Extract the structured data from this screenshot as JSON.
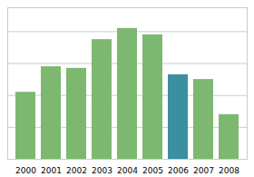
{
  "chart_data": {
    "type": "bar",
    "categories": [
      "2000",
      "2001",
      "2002",
      "2003",
      "2004",
      "2005",
      "2006",
      "2007",
      "2008"
    ],
    "values": [
      42,
      58,
      57,
      75,
      82,
      78,
      53,
      50,
      28
    ],
    "colors": [
      "#7db870",
      "#7db870",
      "#7db870",
      "#7db870",
      "#7db870",
      "#7db870",
      "#3a8fa0",
      "#7db870",
      "#7db870"
    ],
    "ylim": [
      0,
      95
    ],
    "yticks": [
      0,
      20,
      40,
      60,
      80
    ],
    "grid": true,
    "tick_labels": "x"
  }
}
